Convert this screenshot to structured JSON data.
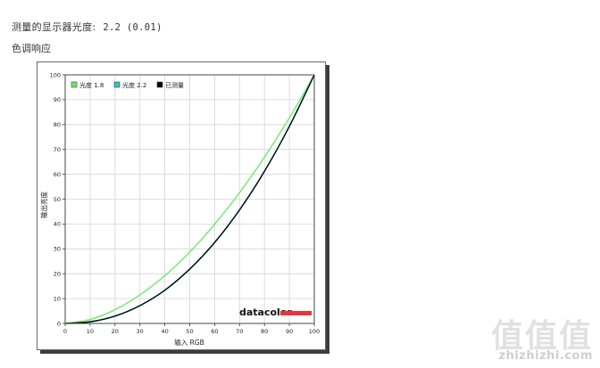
{
  "header": {
    "gamma_label": "测量的显示器光度:",
    "gamma_value": "2.2 (0.01)",
    "section_title": "色调响应"
  },
  "chart_data": {
    "type": "line",
    "xlabel": "输入 RGB",
    "ylabel": "输出亮度",
    "xlim": [
      0,
      100
    ],
    "ylim": [
      0,
      100
    ],
    "grid": true,
    "legend_position": "top-left",
    "xticks": [
      0,
      10,
      20,
      30,
      40,
      50,
      60,
      70,
      80,
      90,
      100
    ],
    "yticks": [
      0,
      10,
      20,
      30,
      40,
      50,
      60,
      70,
      80,
      90,
      100
    ],
    "series": [
      {
        "name": "光度 1.8",
        "color": "#6ee86e",
        "x": [
          0,
          10,
          20,
          30,
          40,
          50,
          60,
          70,
          80,
          90,
          100
        ],
        "y": [
          0,
          1.6,
          5.5,
          11.5,
          19.2,
          28.7,
          39.9,
          52.6,
          66.9,
          82.7,
          100
        ]
      },
      {
        "name": "光度 2.2",
        "color": "#2bc9c0",
        "x": [
          0,
          10,
          20,
          30,
          40,
          50,
          60,
          70,
          80,
          90,
          100
        ],
        "y": [
          0,
          0.6,
          2.9,
          7.1,
          13.3,
          21.8,
          32.5,
          45.6,
          61.2,
          79.3,
          100
        ]
      },
      {
        "name": "已测量",
        "color": "#000000",
        "x": [
          0,
          10,
          20,
          30,
          40,
          50,
          60,
          70,
          80,
          90,
          100
        ],
        "y": [
          0,
          0.7,
          3.0,
          7.2,
          13.4,
          21.9,
          32.6,
          45.7,
          61.2,
          79.3,
          100
        ]
      }
    ]
  },
  "logo": {
    "text": "datacolor",
    "bar_color": "#e8343a"
  },
  "watermark": {
    "text": "值值值",
    "url": "zhizhizhi.com"
  }
}
